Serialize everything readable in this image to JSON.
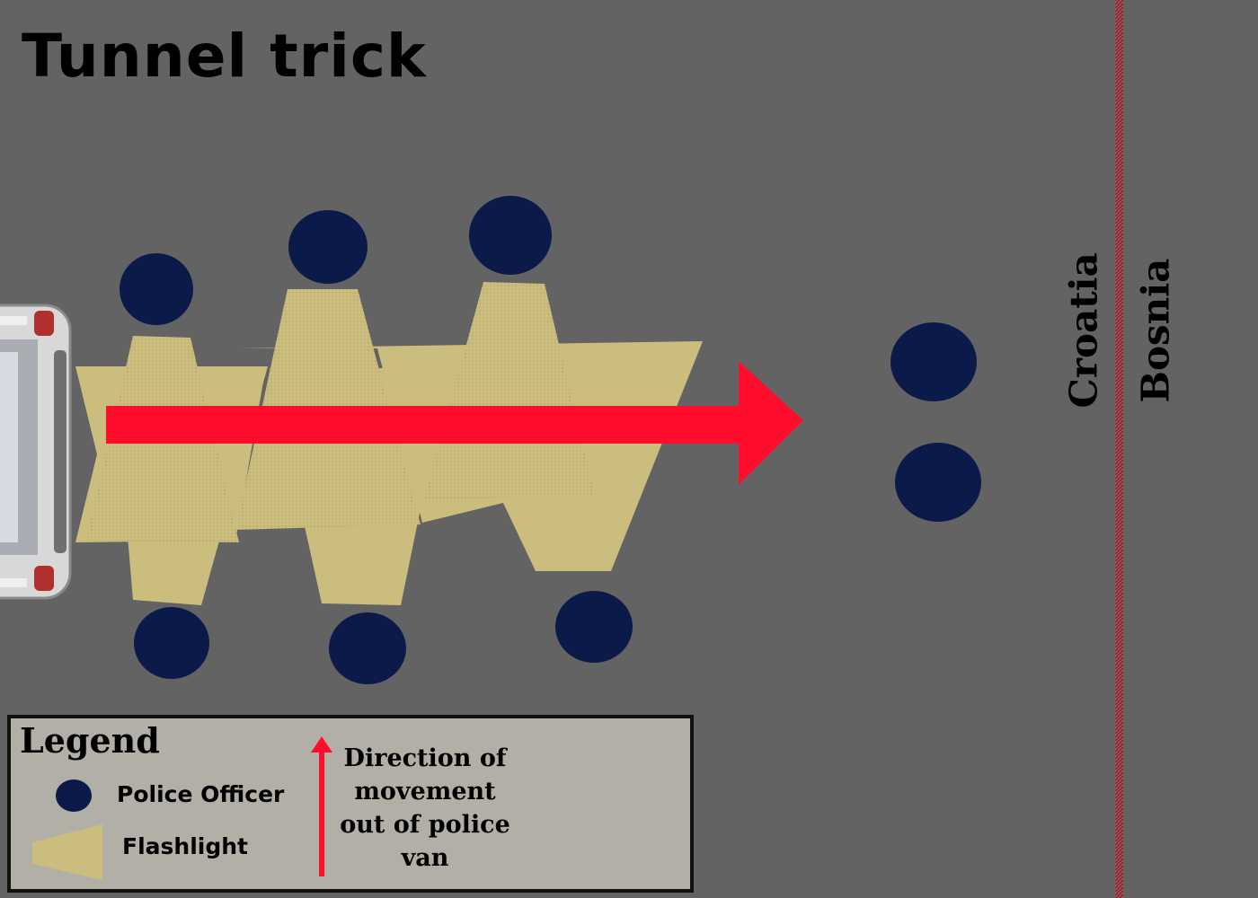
{
  "title": "Tunnel trick",
  "countries": {
    "left": "Croatia",
    "right": "Bosnia"
  },
  "legend": {
    "heading": "Legend",
    "police_officer": "Police Officer",
    "flashlight": "Flashlight",
    "direction": "Direction of movement out of police van"
  },
  "colors": {
    "background": "#636363",
    "officer": "#0c1a4a",
    "flashlight": "#cbbd7d",
    "arrow": "#ff0d2d",
    "border_line": "#8a3a40",
    "legend_bg": "#b2b0a6"
  },
  "icons": {
    "van": "police-van",
    "officer": "officer-dot",
    "flashlight": "flashlight-beam",
    "arrow": "movement-arrow"
  }
}
